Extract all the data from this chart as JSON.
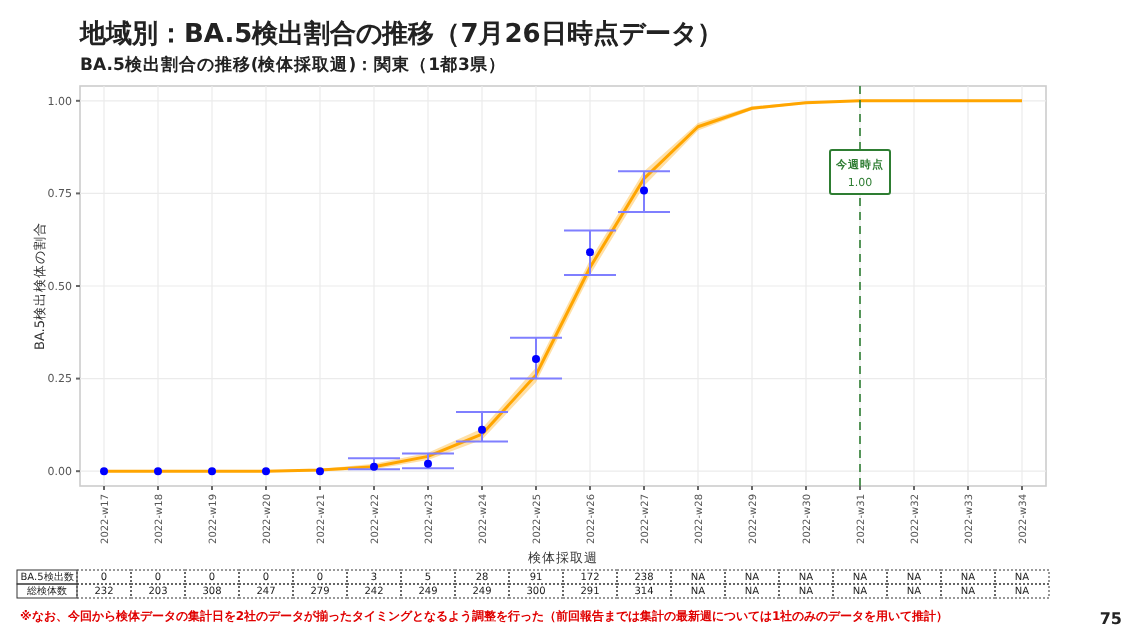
{
  "chart_data": [
    {
      "type": "line",
      "title": "地域別：BA.5検出割合の推移（7月26日時点データ）",
      "subtitle": "BA.5検出割合の推移(検体採取週)：関東（1都3県）",
      "xlabel": "検体採取週",
      "ylabel": "BA.5検出検体の割合",
      "categories": [
        "2022-w17",
        "2022-w18",
        "2022-w19",
        "2022-w20",
        "2022-w21",
        "2022-w22",
        "2022-w23",
        "2022-w24",
        "2022-w25",
        "2022-w26",
        "2022-w27",
        "2022-w28",
        "2022-w29",
        "2022-w30",
        "2022-w31",
        "2022-w32",
        "2022-w33",
        "2022-w34"
      ],
      "series": [
        {
          "type": "line",
          "color": "#ffa500",
          "values": [
            0,
            0,
            0,
            0,
            0.003,
            0.012,
            0.04,
            0.1,
            0.26,
            0.55,
            0.79,
            0.93,
            0.98,
            0.995,
            1,
            1,
            1,
            1
          ],
          "lower": [
            0,
            0,
            0,
            0,
            0,
            0.005,
            0.03,
            0.085,
            0.24,
            0.53,
            0.77,
            0.92,
            0.975,
            0.993,
            0.998,
            1,
            1,
            1
          ],
          "upper": [
            0.002,
            0.002,
            0.002,
            0.002,
            0.006,
            0.02,
            0.05,
            0.115,
            0.28,
            0.57,
            0.81,
            0.94,
            0.985,
            0.998,
            1,
            1,
            1,
            1
          ]
        },
        {
          "type": "scatter",
          "color": "#0000ff",
          "marker": "circle",
          "values": [
            0,
            0,
            0,
            0,
            0,
            0.012,
            0.02,
            0.112,
            0.303,
            0.591,
            0.758,
            null,
            null,
            null,
            null,
            null,
            null,
            null
          ],
          "errors": [
            null,
            null,
            null,
            null,
            null,
            [
              0.005,
              0.035
            ],
            [
              0.008,
              0.048
            ],
            [
              0.08,
              0.16
            ],
            [
              0.25,
              0.36
            ],
            [
              0.53,
              0.65
            ],
            [
              0.7,
              0.81
            ],
            null,
            null,
            null,
            null,
            null,
            null,
            null
          ]
        }
      ],
      "ylim": [
        -0.04,
        1.04
      ],
      "yticks": [
        {
          "value": 0,
          "label": "0.00"
        },
        {
          "value": 0.25,
          "label": "0.25"
        },
        {
          "value": 0.5,
          "label": "0.50"
        },
        {
          "value": 0.75,
          "label": "0.75"
        },
        {
          "value": 1,
          "label": "1.00"
        }
      ],
      "grid": true,
      "ref_lines": [
        {
          "axis": "x",
          "value": "2022-w31",
          "label": "今週時点\n1.00",
          "color": "#2e7d32",
          "line_style": "dashed"
        }
      ],
      "annotations": [
        "※なお、今回から検体データの集計日を2社のデータが揃ったタイミングとなるよう調整を行った（前回報告までは集計の最新週については1社のみのデータを用いて推計）",
        "75"
      ]
    },
    {
      "type": "other",
      "y_categories": [
        "BA.5検出数",
        "総検体数"
      ],
      "cell_labels": [
        [
          "0",
          "0",
          "0",
          "0",
          "0",
          "3",
          "5",
          "28",
          "91",
          "172",
          "238",
          "NA",
          "NA",
          "NA",
          "NA",
          "NA",
          "NA",
          "NA"
        ],
        [
          "232",
          "203",
          "308",
          "247",
          "279",
          "242",
          "249",
          "249",
          "300",
          "291",
          "314",
          "NA",
          "NA",
          "NA",
          "NA",
          "NA",
          "NA",
          "NA"
        ]
      ]
    }
  ]
}
